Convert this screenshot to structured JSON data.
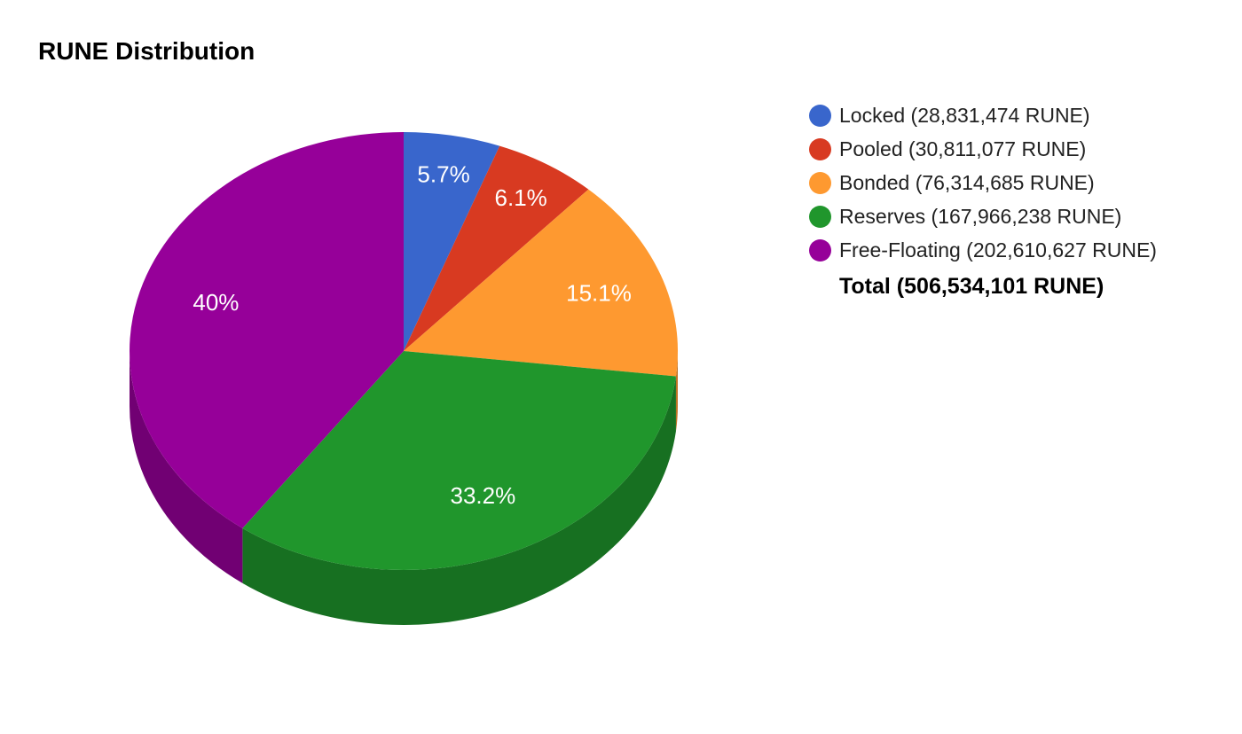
{
  "chart_data": {
    "type": "pie",
    "title": "RUNE Distribution",
    "categories": [
      "Locked",
      "Pooled",
      "Bonded",
      "Reserves",
      "Free-Floating"
    ],
    "values": [
      28831474,
      30811077,
      76314685,
      167966238,
      202610627
    ],
    "percent_labels": [
      "5.7%",
      "6.1%",
      "15.1%",
      "33.2%",
      "40%"
    ],
    "legend_labels": [
      "Locked (28,831,474 RUNE)",
      "Pooled (30,811,077 RUNE)",
      "Bonded (76,314,685 RUNE)",
      "Reserves (167,966,238 RUNE)",
      "Free-Floating (202,610,627 RUNE)"
    ],
    "colors": [
      "#3966cc",
      "#d83a21",
      "#fe9930",
      "#20962c",
      "#960099"
    ],
    "side_colors": [
      "#2b4d99",
      "#a22b19",
      "#bf7324",
      "#177021",
      "#710073"
    ],
    "total_label": "Total (506,534,101 RUNE)",
    "legend_position": "right",
    "style": "3d"
  }
}
